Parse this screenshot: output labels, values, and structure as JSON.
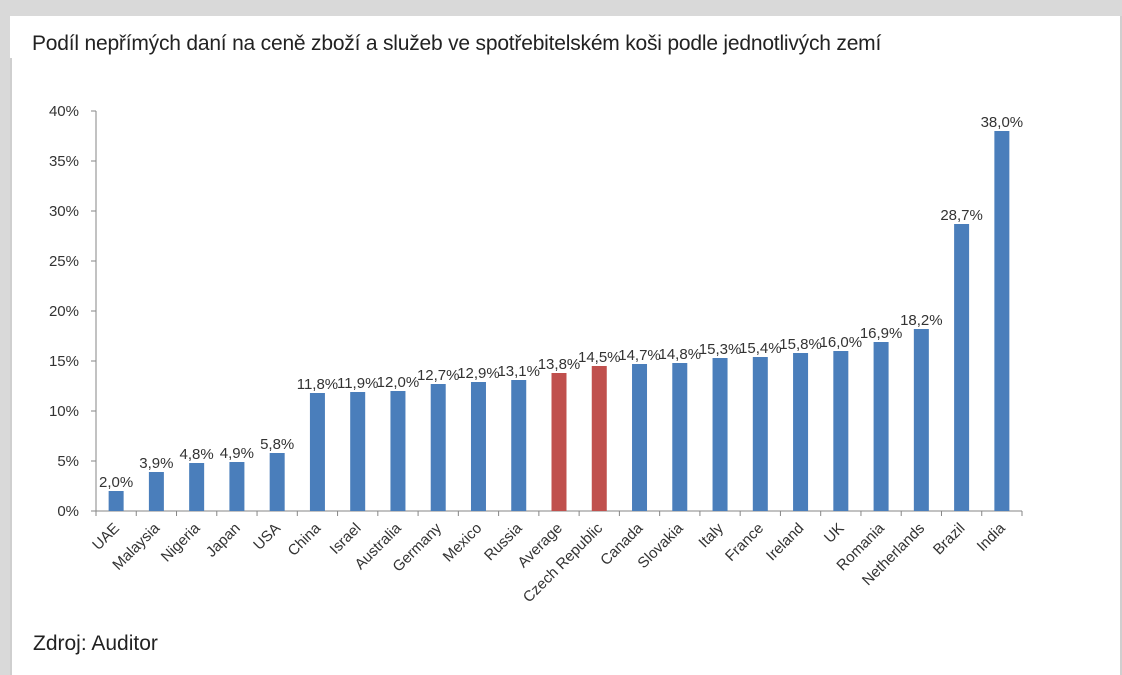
{
  "chart_title": "Podíl nepřímých daní na ceně zboží a služeb ve spotřebitelském koši podle jednotlivých zemí",
  "source": "Zdroj: Auditor",
  "chart_data": {
    "type": "bar",
    "title": "Podíl nepřímých daní na ceně zboží a služeb ve spotřebitelském koši podle jednotlivých zemí",
    "xlabel": "",
    "ylabel": "",
    "ylim": [
      0,
      40
    ],
    "yticks": [
      "0%",
      "5%",
      "10%",
      "15%",
      "20%",
      "25%",
      "30%",
      "35%",
      "40%"
    ],
    "grid": false,
    "legend": "none",
    "colors": {
      "default": "#4a7ebb",
      "highlight": "#c0504d"
    },
    "categories": [
      "UAE",
      "Malaysia",
      "Nigeria",
      "Japan",
      "USA",
      "China",
      "Israel",
      "Australia",
      "Germany",
      "Mexico",
      "Russia",
      "Average",
      "Czech Republic",
      "Canada",
      "Slovakia",
      "Italy",
      "France",
      "Ireland",
      "UK",
      "Romania",
      "Netherlands",
      "Brazil",
      "India"
    ],
    "values": [
      2.0,
      3.9,
      4.8,
      4.9,
      5.8,
      11.8,
      11.9,
      12.0,
      12.7,
      12.9,
      13.1,
      13.8,
      14.5,
      14.7,
      14.8,
      15.3,
      15.4,
      15.8,
      16.0,
      16.9,
      18.2,
      28.7,
      38.0
    ],
    "labels": [
      "2,0%",
      "3,9%",
      "4,8%",
      "4,9%",
      "5,8%",
      "11,8%",
      "11,9%",
      "12,0%",
      "12,7%",
      "12,9%",
      "13,1%",
      "13,8%",
      "14,5%",
      "14,7%",
      "14,8%",
      "15,3%",
      "15,4%",
      "15,8%",
      "16,0%",
      "16,9%",
      "18,2%",
      "28,7%",
      "38,0%"
    ],
    "highlighted": [
      "Average",
      "Czech Republic"
    ]
  }
}
